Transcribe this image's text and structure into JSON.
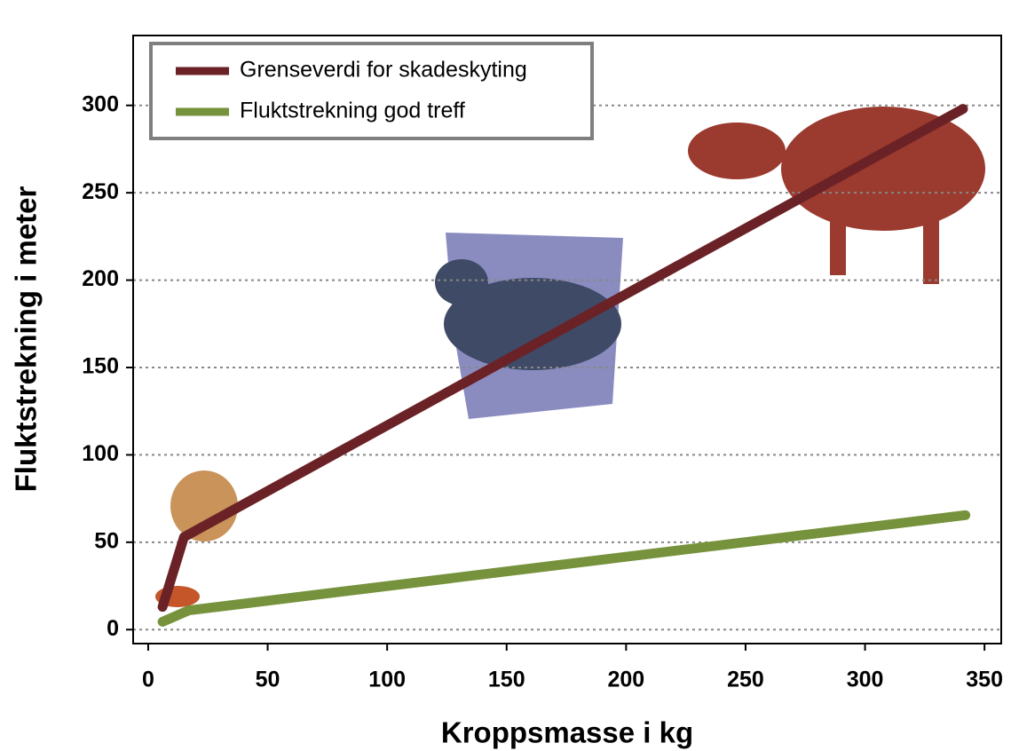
{
  "chart_data": {
    "type": "line",
    "x_label": "Kroppsmasse i kg",
    "y_label": "Fluktstrekning i meter",
    "series": [
      {
        "name": "Grenseverdi for skadeskyting",
        "color": "#6b2226",
        "x": [
          6,
          15,
          341
        ],
        "values": [
          13,
          53,
          298
        ]
      },
      {
        "name": "Fluktstrekning god treff",
        "color": "#76923c",
        "x": [
          6,
          17,
          342
        ],
        "values": [
          4.5,
          11,
          65.5
        ]
      }
    ],
    "xlim": [
      -6.3,
      357
    ],
    "ylim": [
      -8,
      340
    ],
    "xticks": [
      0,
      50,
      100,
      150,
      200,
      250,
      300,
      350
    ],
    "yticks": [
      0,
      50,
      100,
      150,
      200,
      250,
      300
    ],
    "grid": true,
    "legend": "upper left"
  }
}
